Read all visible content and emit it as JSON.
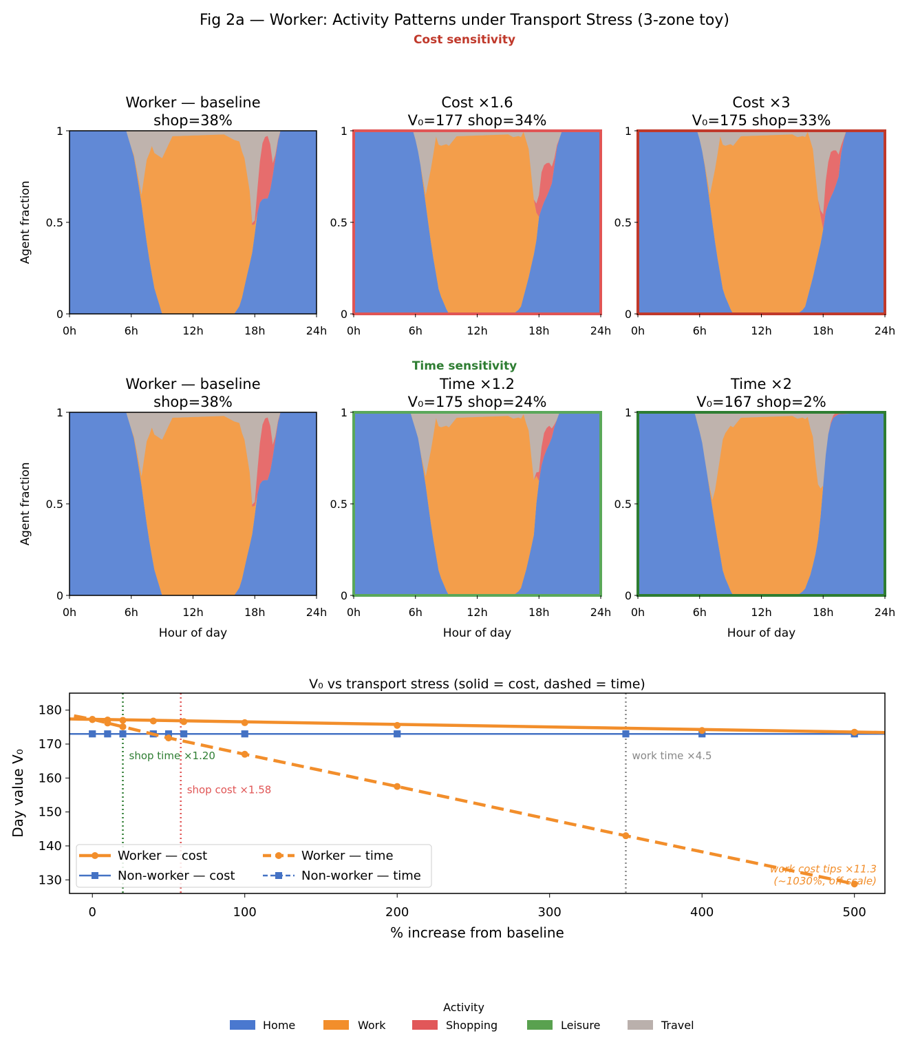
{
  "figure": {
    "title": "Fig 2a — Worker: Activity Patterns under Transport Stress (3-zone toy)",
    "section_cost": "Cost sensitivity",
    "section_time": "Time sensitivity",
    "colors": {
      "home": "#6189d6",
      "work": "#f39e4b",
      "shopping": "#e66d6d",
      "leisure": "#5a9e50",
      "travel": "#bfb3ad",
      "cost_section": "#c0392b",
      "time_section": "#2e7d32"
    },
    "legend": {
      "title": "Activity",
      "items": [
        {
          "label": "Home",
          "color": "#4a78cf"
        },
        {
          "label": "Work",
          "color": "#f28e2b"
        },
        {
          "label": "Shopping",
          "color": "#e15759"
        },
        {
          "label": "Leisure",
          "color": "#59a14f"
        },
        {
          "label": "Travel",
          "color": "#bab0ac"
        }
      ]
    }
  },
  "chart_data": [
    {
      "type": "area",
      "title_line1": "Worker — baseline",
      "title_line2": "shop=38%",
      "ylabel": "Agent fraction",
      "xlabel": "",
      "frame": "#000000",
      "xticks": [
        "0h",
        "6h",
        "12h",
        "18h",
        "24h"
      ],
      "yticks": [
        "0",
        "0.5",
        "1"
      ],
      "xlim": [
        0,
        24
      ],
      "ylim": [
        0,
        1
      ],
      "series": [
        {
          "name": "Home",
          "x": [
            0,
            5.5,
            6.3,
            7,
            7.6,
            8.2,
            9,
            16,
            16.6,
            17.2,
            17.7,
            17.9,
            18.1,
            18.4,
            18.8,
            19.3,
            19.6,
            20.4,
            24
          ],
          "values": [
            1,
            1,
            0.85,
            0.6,
            0.35,
            0.15,
            0,
            0,
            0.05,
            0.2,
            0.32,
            0.38,
            0.5,
            0.6,
            0.63,
            0.63,
            0.7,
            1,
            1
          ]
        },
        {
          "name": "Work",
          "x": [
            0,
            6,
            6.5,
            7,
            7.5,
            8,
            9,
            10,
            15,
            16,
            16.5,
            17,
            17.5,
            17.8,
            18.2,
            24
          ],
          "values": [
            0,
            0,
            0.02,
            0.05,
            0.45,
            0.7,
            0.85,
            0.97,
            0.98,
            0.95,
            0.9,
            0.7,
            0.4,
            0.1,
            0,
            0
          ]
        },
        {
          "name": "Shopping",
          "x": [
            0,
            17.5,
            18,
            18.3,
            18.7,
            19.2,
            19.5,
            19.8,
            20.4,
            24
          ],
          "values": [
            0,
            0,
            0.02,
            0.15,
            0.3,
            0.36,
            0.25,
            0.03,
            0,
            0
          ]
        },
        {
          "name": "Leisure",
          "x": [
            0,
            24
          ],
          "values": [
            0,
            0
          ]
        }
      ]
    },
    {
      "type": "area",
      "title_line1": "Cost ×1.6",
      "title_line2": "V₀=177  shop=34%",
      "ylabel": "",
      "xlabel": "",
      "frame": "#e05555",
      "xticks": [
        "0h",
        "6h",
        "12h",
        "18h",
        "24h"
      ],
      "yticks": [
        "0",
        "0.5",
        "1"
      ],
      "xlim": [
        0,
        24
      ],
      "ylim": [
        0,
        1
      ],
      "series": [
        {
          "name": "Home",
          "x": [
            0,
            5.8,
            6.4,
            7,
            7.6,
            8.3,
            9.2,
            15.5,
            16.2,
            17,
            17.6,
            17.8,
            18,
            18.4,
            18.9,
            19.3,
            19.7,
            20.2,
            24
          ],
          "values": [
            1,
            1,
            0.85,
            0.6,
            0.35,
            0.12,
            0,
            0,
            0.03,
            0.2,
            0.35,
            0.42,
            0.53,
            0.6,
            0.66,
            0.72,
            0.9,
            1,
            1
          ]
        },
        {
          "name": "Work",
          "x": [
            0,
            6.5,
            7,
            7.5,
            8,
            9,
            10,
            15,
            16,
            16.5,
            17,
            17.5,
            18,
            24
          ],
          "values": [
            0,
            0,
            0.05,
            0.4,
            0.75,
            0.9,
            0.97,
            0.98,
            0.95,
            0.9,
            0.7,
            0.3,
            0,
            0
          ]
        },
        {
          "name": "Shopping",
          "x": [
            0,
            17.5,
            17.9,
            18.2,
            18.6,
            19,
            19.3,
            19.6,
            20,
            24
          ],
          "values": [
            0,
            0,
            0.08,
            0.2,
            0.2,
            0.15,
            0.08,
            0.02,
            0,
            0
          ]
        },
        {
          "name": "Leisure",
          "x": [
            0,
            24
          ],
          "values": [
            0,
            0
          ]
        }
      ]
    },
    {
      "type": "area",
      "title_line1": "Cost ×3",
      "title_line2": "V₀=175  shop=33%",
      "ylabel": "",
      "xlabel": "",
      "frame": "#c0392b",
      "xticks": [
        "0h",
        "6h",
        "12h",
        "18h",
        "24h"
      ],
      "yticks": [
        "0",
        "0.5",
        "1"
      ],
      "xlim": [
        0,
        24
      ],
      "ylim": [
        0,
        1
      ],
      "series": [
        {
          "name": "Home",
          "x": [
            0,
            5.8,
            6.4,
            7,
            7.6,
            8.3,
            9.2,
            15.5,
            16.2,
            17,
            17.6,
            17.9,
            18.2,
            18.6,
            19.1,
            19.5,
            19.8,
            20.2,
            24
          ],
          "values": [
            1,
            1,
            0.85,
            0.6,
            0.35,
            0.12,
            0,
            0,
            0.03,
            0.2,
            0.35,
            0.42,
            0.55,
            0.62,
            0.68,
            0.75,
            0.9,
            1,
            1
          ]
        },
        {
          "name": "Work",
          "x": [
            0,
            6.4,
            7,
            7.5,
            8,
            9,
            10,
            15,
            16,
            16.5,
            17,
            17.5,
            18,
            24
          ],
          "values": [
            0,
            0,
            0.05,
            0.4,
            0.75,
            0.9,
            0.97,
            0.98,
            0.95,
            0.9,
            0.7,
            0.3,
            0,
            0
          ]
        },
        {
          "name": "Shopping",
          "x": [
            0,
            17.6,
            18,
            18.4,
            18.8,
            19.2,
            19.5,
            19.8,
            20.1,
            24
          ],
          "values": [
            0,
            0,
            0.08,
            0.22,
            0.25,
            0.2,
            0.12,
            0.03,
            0,
            0
          ]
        },
        {
          "name": "Leisure",
          "x": [
            0,
            24
          ],
          "values": [
            0,
            0
          ]
        }
      ]
    },
    {
      "type": "area",
      "title_line1": "Worker — baseline",
      "title_line2": "shop=38%",
      "ylabel": "Agent fraction",
      "xlabel": "Hour of day",
      "frame": "#000000",
      "xticks": [
        "0h",
        "6h",
        "12h",
        "18h",
        "24h"
      ],
      "yticks": [
        "0",
        "0.5",
        "1"
      ],
      "xlim": [
        0,
        24
      ],
      "ylim": [
        0,
        1
      ],
      "series": [
        {
          "name": "Home",
          "x": [
            0,
            5.5,
            6.3,
            7,
            7.6,
            8.2,
            9,
            16,
            16.6,
            17.2,
            17.7,
            17.9,
            18.1,
            18.4,
            18.8,
            19.3,
            19.6,
            20.4,
            24
          ],
          "values": [
            1,
            1,
            0.85,
            0.6,
            0.35,
            0.15,
            0,
            0,
            0.05,
            0.2,
            0.32,
            0.38,
            0.5,
            0.6,
            0.63,
            0.63,
            0.7,
            1,
            1
          ]
        },
        {
          "name": "Work",
          "x": [
            0,
            6,
            6.5,
            7,
            7.5,
            8,
            9,
            10,
            15,
            16,
            16.5,
            17,
            17.5,
            17.8,
            18.2,
            24
          ],
          "values": [
            0,
            0,
            0.02,
            0.05,
            0.45,
            0.7,
            0.85,
            0.97,
            0.98,
            0.95,
            0.9,
            0.7,
            0.4,
            0.1,
            0,
            0
          ]
        },
        {
          "name": "Shopping",
          "x": [
            0,
            17.5,
            18,
            18.3,
            18.7,
            19.2,
            19.5,
            19.8,
            20.4,
            24
          ],
          "values": [
            0,
            0,
            0.02,
            0.15,
            0.3,
            0.36,
            0.25,
            0.03,
            0,
            0
          ]
        },
        {
          "name": "Leisure",
          "x": [
            0,
            24
          ],
          "values": [
            0,
            0
          ]
        }
      ]
    },
    {
      "type": "area",
      "title_line1": "Time ×1.2",
      "title_line2": "V₀=175  shop=24%",
      "ylabel": "",
      "xlabel": "Hour of day",
      "frame": "#5aa85a",
      "xticks": [
        "0h",
        "6h",
        "12h",
        "18h",
        "24h"
      ],
      "yticks": [
        "0",
        "0.5",
        "1"
      ],
      "xlim": [
        0,
        24
      ],
      "ylim": [
        0,
        1
      ],
      "series": [
        {
          "name": "Home",
          "x": [
            0,
            5.5,
            6.3,
            7,
            7.6,
            8.3,
            9.2,
            15.5,
            16.2,
            16.8,
            17.4,
            17.6,
            17.8,
            18.2,
            18.6,
            19.2,
            19.5,
            20,
            24
          ],
          "values": [
            1,
            1,
            0.85,
            0.6,
            0.35,
            0.12,
            0,
            0,
            0.03,
            0.15,
            0.3,
            0.36,
            0.55,
            0.7,
            0.78,
            0.85,
            0.92,
            1,
            1
          ]
        },
        {
          "name": "Work",
          "x": [
            0,
            6.5,
            7,
            7.5,
            8,
            9,
            10,
            15,
            16,
            16.5,
            17,
            17.5,
            18,
            24
          ],
          "values": [
            0,
            0,
            0.05,
            0.4,
            0.75,
            0.9,
            0.97,
            0.98,
            0.95,
            0.9,
            0.7,
            0.3,
            0,
            0
          ]
        },
        {
          "name": "Shopping",
          "x": [
            0,
            17.6,
            18,
            18.4,
            18.7,
            19,
            19.3,
            19.6,
            24
          ],
          "values": [
            0,
            0,
            0.05,
            0.13,
            0.12,
            0.1,
            0.04,
            0,
            0
          ]
        },
        {
          "name": "Leisure",
          "x": [
            0,
            24
          ],
          "values": [
            0,
            0
          ]
        }
      ]
    },
    {
      "type": "area",
      "title_line1": "Time ×2",
      "title_line2": "V₀=167  shop=2%",
      "ylabel": "",
      "xlabel": "Hour of day",
      "frame": "#2e7d32",
      "xticks": [
        "0h",
        "6h",
        "12h",
        "18h",
        "24h"
      ],
      "yticks": [
        "0",
        "0.5",
        "1"
      ],
      "xlim": [
        0,
        24
      ],
      "ylim": [
        0,
        1
      ],
      "series": [
        {
          "name": "Home",
          "x": [
            0,
            5.5,
            6.2,
            6.9,
            7.6,
            8.3,
            9.2,
            15.5,
            16.2,
            16.8,
            17.4,
            17.7,
            18,
            18.3,
            18.6,
            19,
            19.5,
            24
          ],
          "values": [
            1,
            1,
            0.85,
            0.6,
            0.35,
            0.12,
            0,
            0,
            0.03,
            0.12,
            0.26,
            0.4,
            0.6,
            0.8,
            0.92,
            0.97,
            0.99,
            1
          ]
        },
        {
          "name": "Work",
          "x": [
            0,
            6.8,
            7.3,
            7.8,
            8.3,
            9,
            10,
            15,
            16,
            16.5,
            17,
            17.5,
            18,
            24
          ],
          "values": [
            0,
            0,
            0.05,
            0.4,
            0.75,
            0.9,
            0.97,
            0.98,
            0.95,
            0.9,
            0.7,
            0.3,
            0,
            0
          ]
        },
        {
          "name": "Shopping",
          "x": [
            0,
            18.5,
            18.8,
            19.2,
            19.8,
            20.2,
            24
          ],
          "values": [
            0,
            0,
            0.01,
            0.02,
            0.01,
            0,
            0
          ]
        },
        {
          "name": "Leisure",
          "x": [
            0,
            24
          ],
          "values": [
            0,
            0
          ]
        }
      ]
    },
    {
      "type": "line",
      "title": "V₀ vs transport stress  (solid = cost, dashed = time)",
      "xlabel": "% increase from baseline",
      "ylabel": "Day value V₀",
      "xlim": [
        -15,
        520
      ],
      "ylim": [
        126,
        185
      ],
      "xticks": [
        0,
        100,
        200,
        300,
        400,
        500
      ],
      "yticks": [
        130,
        140,
        150,
        160,
        170,
        180
      ],
      "series": [
        {
          "name": "Worker — cost",
          "color": "#f28e2b",
          "dash": false,
          "marker": "circle",
          "line_x": [
            -15,
            520
          ],
          "line_y": [
            177.4,
            173.4
          ],
          "x": [
            0,
            10,
            20,
            40,
            60,
            100,
            200,
            400,
            500
          ],
          "values": [
            177.2,
            177.1,
            177.0,
            176.8,
            176.6,
            176.3,
            175.5,
            174.0,
            173.5
          ]
        },
        {
          "name": "Worker — time",
          "color": "#f28e2b",
          "dash": true,
          "marker": "circle",
          "line_x": [
            -12,
            0,
            20,
            40,
            50,
            100,
            200,
            350,
            500
          ],
          "line_y": [
            178.3,
            177.3,
            175.1,
            172.9,
            171.8,
            167.0,
            157.5,
            143.0,
            128.8
          ],
          "x": [
            0,
            10,
            20,
            50,
            100,
            200,
            350,
            500
          ],
          "values": [
            177.3,
            176.2,
            175.1,
            171.8,
            167.0,
            157.5,
            143.0,
            128.8
          ]
        },
        {
          "name": "Non-worker — cost",
          "color": "#4472c4",
          "dash": false,
          "marker": "square",
          "line_x": [
            -15,
            520
          ],
          "line_y": [
            173,
            173
          ],
          "x": [
            0,
            10,
            20,
            40,
            50,
            60,
            100,
            200,
            350,
            400,
            500
          ],
          "values": [
            173,
            173,
            173,
            173,
            173,
            173,
            173,
            173,
            173,
            173,
            173
          ]
        },
        {
          "name": "Non-worker — time",
          "color": "#4472c4",
          "dash": true,
          "marker": "square",
          "line_x": [
            -15,
            520
          ],
          "line_y": [
            173,
            173
          ],
          "x": [
            0,
            10,
            20,
            40,
            50,
            60,
            100,
            200,
            350,
            400,
            500
          ],
          "values": [
            173,
            173,
            173,
            173,
            173,
            173,
            173,
            173,
            173,
            173,
            173
          ]
        }
      ],
      "vlines": [
        {
          "x": 20,
          "color": "#2e7d32",
          "label": "shop time ×1.20",
          "label_y": 166.5
        },
        {
          "x": 58,
          "color": "#e05555",
          "label": "shop cost ×1.58",
          "label_y": 156.5
        },
        {
          "x": 350,
          "color": "#888888",
          "label": "work time ×4.5",
          "label_y": 166.5
        }
      ],
      "annotation": {
        "line1": "work cost tips ×11.3",
        "line2": "(~1030%, off scale)",
        "color": "#f28e2b"
      }
    }
  ]
}
